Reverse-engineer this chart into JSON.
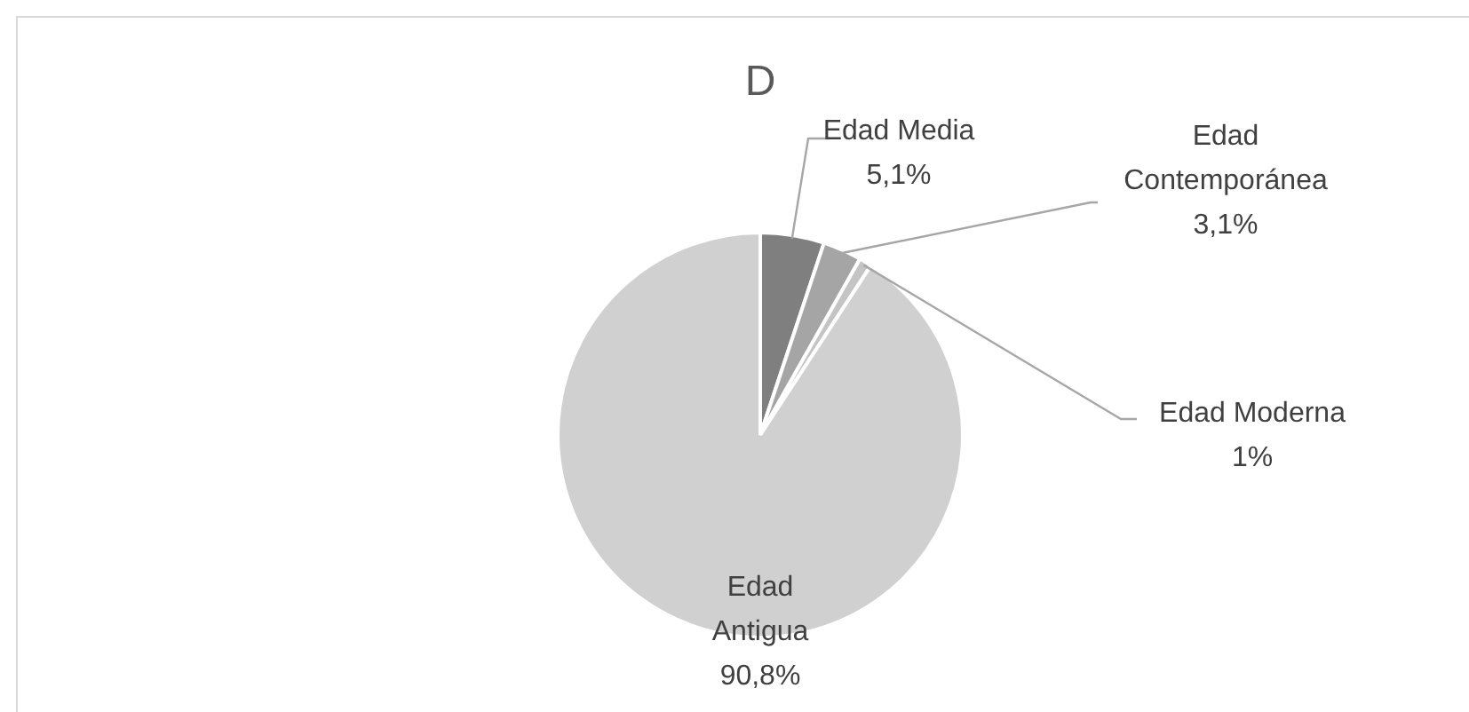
{
  "chart_data": {
    "type": "pie",
    "title": "D",
    "categories": [
      "Edad Media",
      "Edad Contemporánea",
      "Edad Moderna",
      "Edad Antigua"
    ],
    "values": [
      5.1,
      3.1,
      1,
      90.8
    ],
    "value_labels": [
      "5,1%",
      "3,1%",
      "1%",
      "90,8%"
    ],
    "colors": [
      "#7f7f7f",
      "#a5a5a5",
      "#c4c4c4",
      "#d0d0d0"
    ],
    "legend": false
  }
}
